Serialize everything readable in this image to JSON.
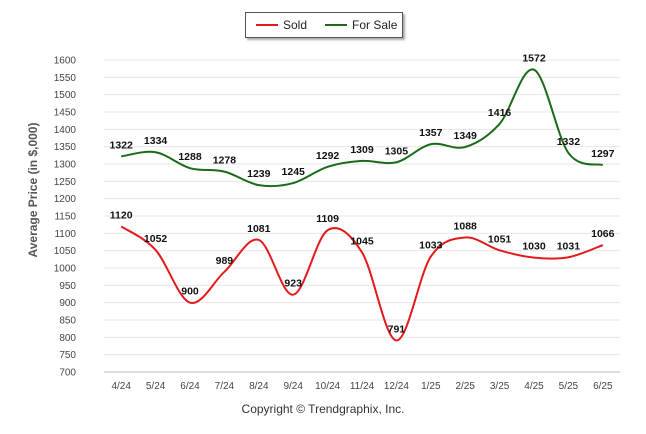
{
  "chart_data": {
    "type": "line",
    "title": "",
    "xlabel": "",
    "ylabel": "Average Price (in $,000)",
    "categories": [
      "4/24",
      "5/24",
      "6/24",
      "7/24",
      "8/24",
      "9/24",
      "10/24",
      "11/24",
      "12/24",
      "1/25",
      "2/25",
      "3/25",
      "4/25",
      "5/25",
      "6/25"
    ],
    "ylim": [
      700,
      1600
    ],
    "yticks": [
      700,
      750,
      800,
      850,
      900,
      950,
      1000,
      1050,
      1100,
      1150,
      1200,
      1250,
      1300,
      1350,
      1400,
      1450,
      1500,
      1550,
      1600
    ],
    "grid": true,
    "legend": "top-center",
    "series": [
      {
        "name": "Sold",
        "color": "#e31a1c",
        "values": [
          1120,
          1052,
          900,
          989,
          1081,
          923,
          1109,
          1045,
          791,
          1033,
          1088,
          1051,
          1030,
          1031,
          1066
        ]
      },
      {
        "name": "For Sale",
        "color": "#1a6b1a",
        "values": [
          1322,
          1334,
          1288,
          1278,
          1239,
          1245,
          1292,
          1309,
          1305,
          1357,
          1349,
          1416,
          1572,
          1332,
          1297
        ]
      }
    ]
  },
  "footer": "Copyright © Trendgraphix, Inc."
}
